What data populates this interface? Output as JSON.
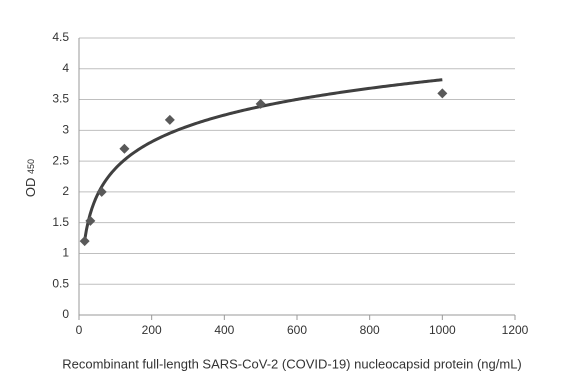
{
  "chart_data": {
    "type": "scatter",
    "xlabel": "Recombinant full-length SARS-CoV-2 (COVID-19) nucleocapsid protein (ng/mL)",
    "ylabel": "OD",
    "ylabel_subscript": "450",
    "x": [
      15.6,
      31.25,
      62.5,
      125,
      250,
      500,
      1000
    ],
    "values": [
      1.2,
      1.53,
      2.0,
      2.7,
      3.17,
      3.43,
      3.6
    ],
    "color": "#595959",
    "trendline": "logarithmic",
    "trendline_color": "#404040",
    "xlim": [
      0,
      1200
    ],
    "xticks": [
      0,
      200,
      400,
      600,
      800,
      1000,
      1200
    ],
    "ylim": [
      0,
      4.5
    ],
    "yticks": [
      0,
      0.5,
      1,
      1.5,
      2,
      2.5,
      3,
      3.5,
      4,
      4.5
    ],
    "grid": true
  }
}
